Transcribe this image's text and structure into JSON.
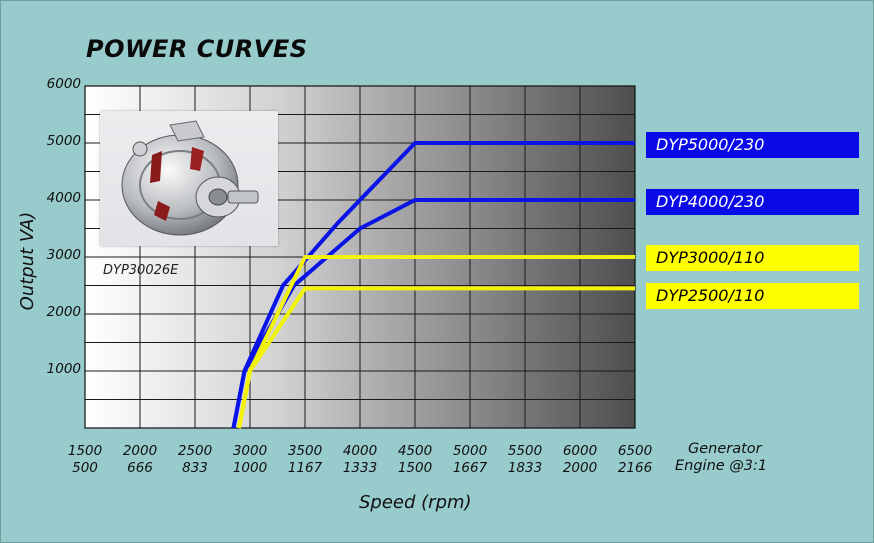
{
  "chart_data": {
    "type": "line",
    "title": "POWER CURVES",
    "ylabel": "Output VA)",
    "xlabel": "Speed (rpm)",
    "ylim": [
      0,
      6000
    ],
    "xlim": [
      1500,
      6500
    ],
    "yticks": [
      "6000",
      "5000",
      "4000",
      "3000",
      "2000",
      "1000"
    ],
    "ytick_values": [
      6000,
      5000,
      4000,
      3000,
      2000,
      1000
    ],
    "xticks": [
      {
        "value": 1500,
        "generator": "1500",
        "engine": "500"
      },
      {
        "value": 2000,
        "generator": "2000",
        "engine": "666"
      },
      {
        "value": 2500,
        "generator": "2500",
        "engine": "833"
      },
      {
        "value": 3000,
        "generator": "3000",
        "engine": "1000"
      },
      {
        "value": 3500,
        "generator": "3500",
        "engine": "1167"
      },
      {
        "value": 4000,
        "generator": "4000",
        "engine": "1333"
      },
      {
        "value": 4500,
        "generator": "4500",
        "engine": "1500"
      },
      {
        "value": 5000,
        "generator": "5000",
        "engine": "1667"
      },
      {
        "value": 5500,
        "generator": "5500",
        "engine": "1833"
      },
      {
        "value": 6000,
        "generator": "6000",
        "engine": "2000"
      },
      {
        "value": 6500,
        "generator": "6500",
        "engine": "2166"
      }
    ],
    "x_row_names": [
      "Generator",
      "Engine @3:1"
    ],
    "grid": true,
    "legend": "right",
    "series": [
      {
        "name": "DYP5000/230",
        "color": "#0a14e6",
        "x": [
          2850,
          2950,
          3300,
          3800,
          4200,
          4500,
          6500
        ],
        "y": [
          0,
          1000,
          2500,
          3600,
          4400,
          5000,
          5000
        ]
      },
      {
        "name": "DYP4000/230",
        "color": "#0a14e6",
        "x": [
          2850,
          2950,
          3400,
          4000,
          4500,
          6500
        ],
        "y": [
          0,
          1000,
          2500,
          3500,
          4000,
          4000
        ]
      },
      {
        "name": "DYP3000/110",
        "color": "#f2f20a",
        "x": [
          2900,
          3000,
          3500,
          6500
        ],
        "y": [
          0,
          1000,
          3000,
          3000
        ]
      },
      {
        "name": "DYP2500/110",
        "color": "#f2f20a",
        "x": [
          2900,
          3000,
          3500,
          6500
        ],
        "y": [
          0,
          1000,
          2450,
          2450
        ]
      }
    ]
  },
  "photo": {
    "caption": "DYP30026E",
    "icon": "alternator-photo"
  }
}
